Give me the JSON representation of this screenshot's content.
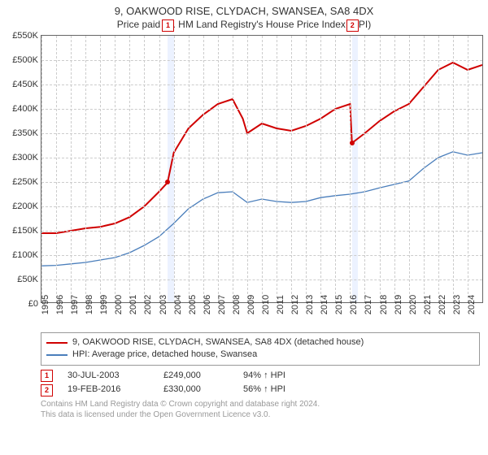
{
  "title": "9, OAKWOOD RISE, CLYDACH, SWANSEA, SA8 4DX",
  "subtitle": "Price paid vs. HM Land Registry's House Price Index (HPI)",
  "chart": {
    "type": "line",
    "background_color": "#ffffff",
    "grid_color": "#cccccc",
    "border_color": "#666666",
    "xlim": [
      1995,
      2025
    ],
    "ylim": [
      0,
      550000
    ],
    "ytick_step": 50000,
    "yticks": [
      "£0",
      "£50K",
      "£100K",
      "£150K",
      "£200K",
      "£250K",
      "£300K",
      "£350K",
      "£400K",
      "£450K",
      "£500K",
      "£550K"
    ],
    "xticks": [
      1995,
      1996,
      1997,
      1998,
      1999,
      2000,
      2001,
      2002,
      2003,
      2004,
      2005,
      2006,
      2007,
      2008,
      2009,
      2010,
      2011,
      2012,
      2013,
      2014,
      2015,
      2016,
      2017,
      2018,
      2019,
      2020,
      2021,
      2022,
      2023,
      2024
    ],
    "shade_ranges": [
      [
        2003.58,
        2004.0
      ],
      [
        2016.13,
        2016.55
      ]
    ],
    "marker_labels": [
      "1",
      "2"
    ],
    "marker_top_x": [
      2003.58,
      2016.13
    ],
    "series": [
      {
        "name": "property",
        "color": "#d00000",
        "width": 2,
        "label": "9, OAKWOOD RISE, CLYDACH, SWANSEA, SA8 4DX (detached house)",
        "points": [
          [
            1995,
            145000
          ],
          [
            1996,
            145000
          ],
          [
            1997,
            150000
          ],
          [
            1998,
            155000
          ],
          [
            1999,
            158000
          ],
          [
            2000,
            165000
          ],
          [
            2001,
            178000
          ],
          [
            2002,
            200000
          ],
          [
            2003,
            230000
          ],
          [
            2003.58,
            249000
          ],
          [
            2004,
            310000
          ],
          [
            2005,
            360000
          ],
          [
            2006,
            388000
          ],
          [
            2007,
            410000
          ],
          [
            2008,
            420000
          ],
          [
            2008.7,
            380000
          ],
          [
            2009,
            350000
          ],
          [
            2010,
            370000
          ],
          [
            2011,
            360000
          ],
          [
            2012,
            355000
          ],
          [
            2013,
            365000
          ],
          [
            2014,
            380000
          ],
          [
            2015,
            400000
          ],
          [
            2016,
            410000
          ],
          [
            2016.13,
            330000
          ],
          [
            2017,
            350000
          ],
          [
            2018,
            375000
          ],
          [
            2019,
            395000
          ],
          [
            2020,
            410000
          ],
          [
            2021,
            445000
          ],
          [
            2022,
            480000
          ],
          [
            2023,
            495000
          ],
          [
            2024,
            480000
          ],
          [
            2025,
            490000
          ]
        ]
      },
      {
        "name": "hpi",
        "color": "#4a7ebb",
        "width": 1.3,
        "label": "HPI: Average price, detached house, Swansea",
        "points": [
          [
            1995,
            78000
          ],
          [
            1996,
            79000
          ],
          [
            1997,
            82000
          ],
          [
            1998,
            85000
          ],
          [
            1999,
            90000
          ],
          [
            2000,
            95000
          ],
          [
            2001,
            105000
          ],
          [
            2002,
            120000
          ],
          [
            2003,
            138000
          ],
          [
            2004,
            165000
          ],
          [
            2005,
            195000
          ],
          [
            2006,
            215000
          ],
          [
            2007,
            228000
          ],
          [
            2008,
            230000
          ],
          [
            2009,
            208000
          ],
          [
            2010,
            215000
          ],
          [
            2011,
            210000
          ],
          [
            2012,
            208000
          ],
          [
            2013,
            210000
          ],
          [
            2014,
            218000
          ],
          [
            2015,
            222000
          ],
          [
            2016,
            225000
          ],
          [
            2017,
            230000
          ],
          [
            2018,
            238000
          ],
          [
            2019,
            245000
          ],
          [
            2020,
            252000
          ],
          [
            2021,
            278000
          ],
          [
            2022,
            300000
          ],
          [
            2023,
            312000
          ],
          [
            2024,
            305000
          ],
          [
            2025,
            310000
          ]
        ]
      }
    ],
    "transaction_points": [
      {
        "x": 2003.58,
        "y": 249000
      },
      {
        "x": 2016.13,
        "y": 330000
      }
    ]
  },
  "legend": {
    "items": [
      {
        "color": "#d00000",
        "label": "9, OAKWOOD RISE, CLYDACH, SWANSEA, SA8 4DX (detached house)"
      },
      {
        "color": "#4a7ebb",
        "label": "HPI: Average price, detached house, Swansea"
      }
    ]
  },
  "transactions": [
    {
      "num": "1",
      "date": "30-JUL-2003",
      "price": "£249,000",
      "hpi": "94% ↑ HPI"
    },
    {
      "num": "2",
      "date": "19-FEB-2016",
      "price": "£330,000",
      "hpi": "56% ↑ HPI"
    }
  ],
  "footer": {
    "line1": "Contains HM Land Registry data © Crown copyright and database right 2024.",
    "line2": "This data is licensed under the Open Government Licence v3.0."
  }
}
